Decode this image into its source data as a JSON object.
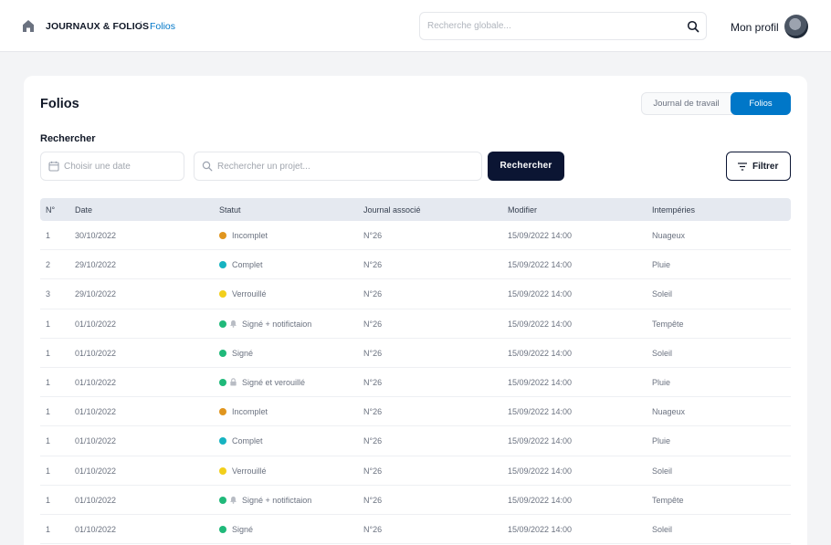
{
  "breadcrumb": {
    "section": "JOURNAUX & FOLIOS",
    "separator": "/",
    "current": "Folios"
  },
  "search": {
    "placeholder": "Recherche globale..."
  },
  "profile": {
    "label": "Mon profil"
  },
  "page": {
    "title": "Folios"
  },
  "view_toggle": {
    "journal": "Journal de travail",
    "folios": "Folios",
    "active": "Folios"
  },
  "filters": {
    "section_label": "Rechercher",
    "date_placeholder": "Choisir une date",
    "project_placeholder": "Rechercher un projet...",
    "search_button": "Rechercher",
    "filter_button": "Filtrer"
  },
  "colors": {
    "accent": "#0077c8",
    "dark_button": "#0b1533",
    "status_incomplet": "#e0951e",
    "status_complet": "#16b3c1",
    "status_verrouille": "#f2cf1b",
    "status_signe": "#20b97a"
  },
  "table": {
    "columns": [
      "N°",
      "Date",
      "Statut",
      "Journal associé",
      "Modifier",
      "Intempéries"
    ],
    "rows": [
      {
        "no": "1",
        "date": "30/10/2022",
        "status": "Incomplet",
        "status_key": "incomplet",
        "icon": "",
        "journal": "N°26",
        "modified": "15/09/2022 14:00",
        "weather": "Nuageux"
      },
      {
        "no": "2",
        "date": "29/10/2022",
        "status": "Complet",
        "status_key": "complet",
        "icon": "",
        "journal": "N°26",
        "modified": "15/09/2022 14:00",
        "weather": "Pluie"
      },
      {
        "no": "3",
        "date": "29/10/2022",
        "status": "Verrouillé",
        "status_key": "verrouille",
        "icon": "",
        "journal": "N°26",
        "modified": "15/09/2022 14:00",
        "weather": "Soleil"
      },
      {
        "no": "1",
        "date": "01/10/2022",
        "status": "Signé + notifictaion",
        "status_key": "signe",
        "icon": "bell-icon",
        "journal": "N°26",
        "modified": "15/09/2022 14:00",
        "weather": "Tempête"
      },
      {
        "no": "1",
        "date": "01/10/2022",
        "status": "Signé",
        "status_key": "signe",
        "icon": "",
        "journal": "N°26",
        "modified": "15/09/2022 14:00",
        "weather": "Soleil"
      },
      {
        "no": "1",
        "date": "01/10/2022",
        "status": "Signé et verouillé",
        "status_key": "signe",
        "icon": "lock-icon",
        "journal": "N°26",
        "modified": "15/09/2022 14:00",
        "weather": "Pluie"
      },
      {
        "no": "1",
        "date": "01/10/2022",
        "status": "Incomplet",
        "status_key": "incomplet",
        "icon": "",
        "journal": "N°26",
        "modified": "15/09/2022 14:00",
        "weather": "Nuageux"
      },
      {
        "no": "1",
        "date": "01/10/2022",
        "status": "Complet",
        "status_key": "complet",
        "icon": "",
        "journal": "N°26",
        "modified": "15/09/2022 14:00",
        "weather": "Pluie"
      },
      {
        "no": "1",
        "date": "01/10/2022",
        "status": "Verrouillé",
        "status_key": "verrouille",
        "icon": "",
        "journal": "N°26",
        "modified": "15/09/2022 14:00",
        "weather": "Soleil"
      },
      {
        "no": "1",
        "date": "01/10/2022",
        "status": "Signé + notifictaion",
        "status_key": "signe",
        "icon": "bell-icon",
        "journal": "N°26",
        "modified": "15/09/2022 14:00",
        "weather": "Tempête"
      },
      {
        "no": "1",
        "date": "01/10/2022",
        "status": "Signé",
        "status_key": "signe",
        "icon": "",
        "journal": "N°26",
        "modified": "15/09/2022 14:00",
        "weather": "Soleil"
      }
    ]
  }
}
